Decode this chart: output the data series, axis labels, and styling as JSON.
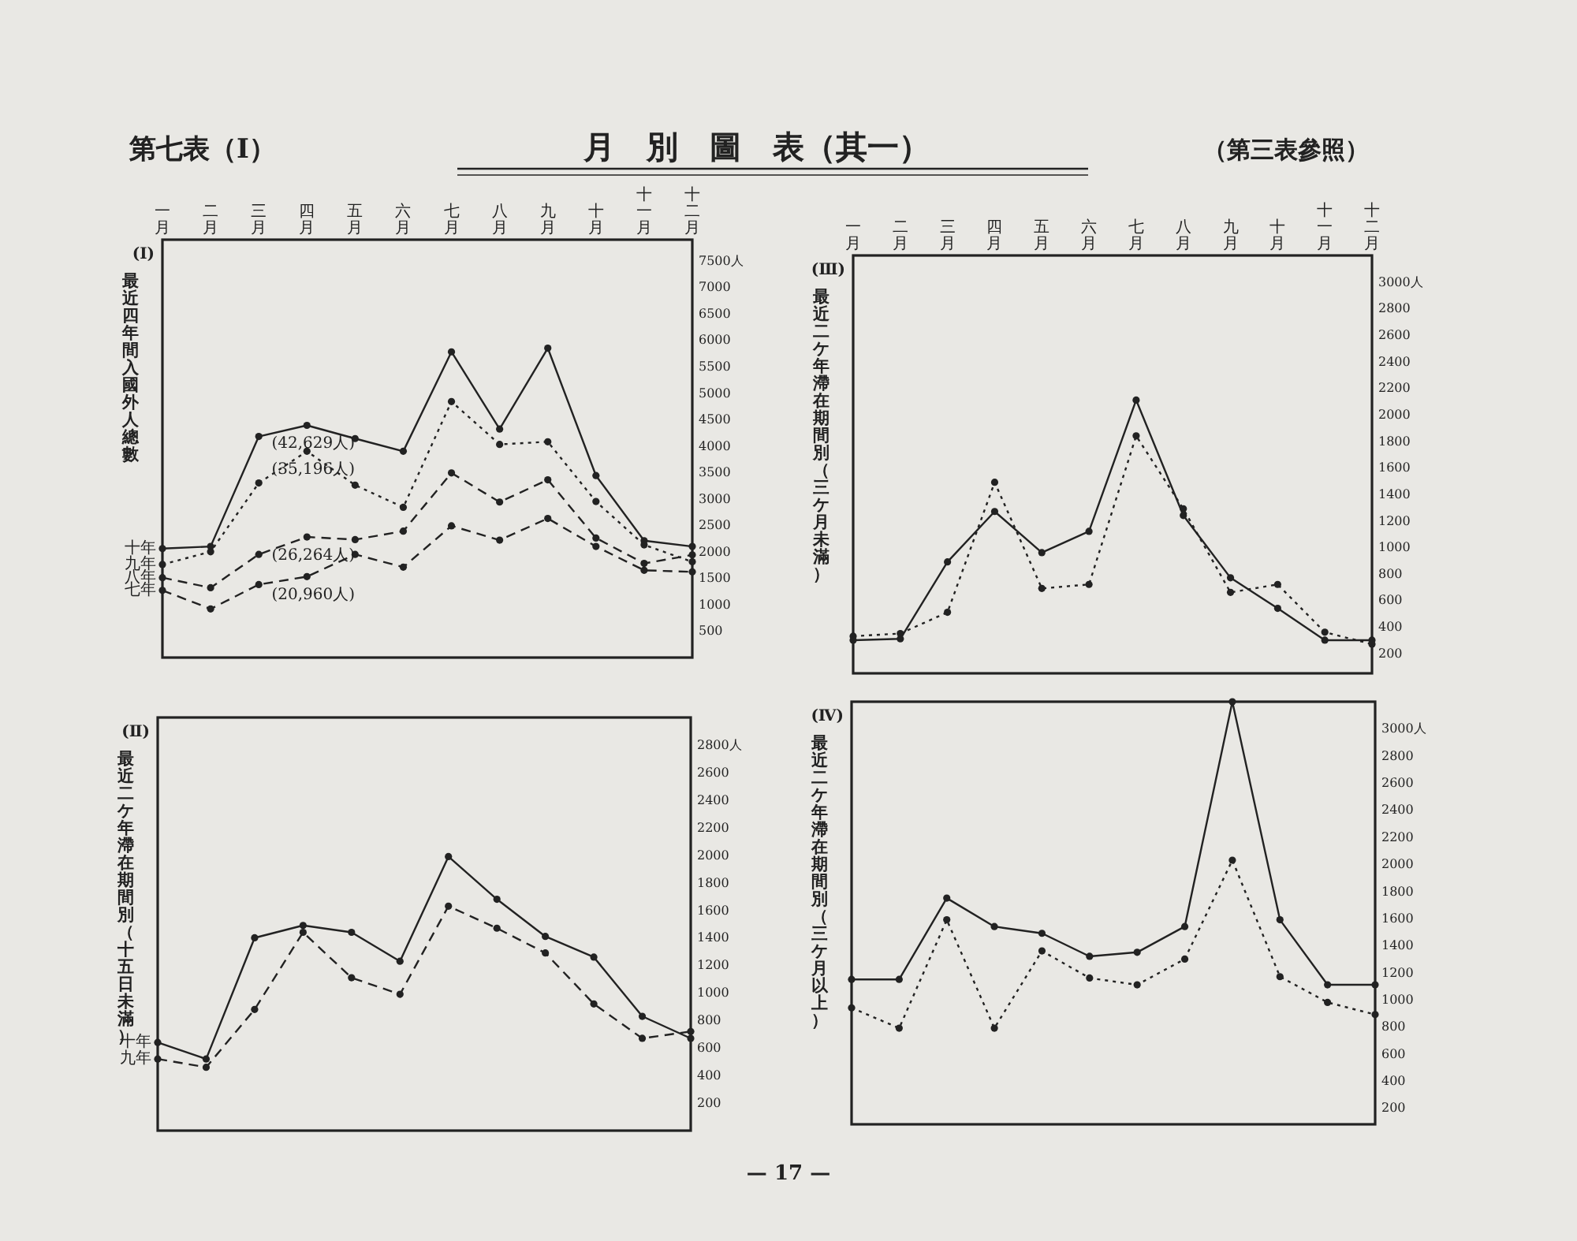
{
  "chart_data": [
    {
      "type": "line",
      "title": "(Ⅰ)",
      "ylabel": "最近四年間入國外人總數",
      "categories": [
        "一月",
        "二月",
        "三月",
        "四月",
        "五月",
        "六月",
        "七月",
        "八月",
        "九月",
        "十月",
        "十一月",
        "十二月"
      ],
      "marker": "circle",
      "series": [
        {
          "name": "十年",
          "color": "#222222",
          "line_style": "solid",
          "values": [
            2060,
            2100,
            4180,
            4390,
            4140,
            3900,
            5780,
            4320,
            5850,
            3440,
            2210,
            2100
          ]
        },
        {
          "name": "九年",
          "color": "#222222",
          "line_style": "dotted",
          "values": [
            1760,
            2000,
            3300,
            3900,
            3260,
            2840,
            4840,
            4030,
            4080,
            2950,
            2130,
            1810
          ]
        },
        {
          "name": "八年",
          "color": "#222222",
          "line_style": "dashed",
          "values": [
            1510,
            1320,
            1950,
            2280,
            2230,
            2390,
            3490,
            2940,
            3360,
            2260,
            1780,
            1940
          ]
        },
        {
          "name": "七年",
          "color": "#222222",
          "line_style": "dashed",
          "values": [
            1270,
            920,
            1380,
            1530,
            1950,
            1710,
            2490,
            2220,
            2630,
            2100,
            1650,
            1620
          ]
        }
      ],
      "ylim": [
        0,
        7900
      ],
      "yticks": [
        500,
        1000,
        1500,
        2000,
        2500,
        3000,
        3500,
        4000,
        4500,
        5000,
        5500,
        6000,
        6500,
        7000,
        {
          "value": 7500,
          "label": "7500人"
        }
      ],
      "annotations": [
        "第七表（I）",
        "月　別　圖　表（其一）",
        "（第三表參照）",
        "— 17 —",
        {
          "text": "(42,629人)",
          "x": "四月",
          "y": 4390
        },
        {
          "text": "(35,196人)",
          "x": "四月",
          "y": 3900
        },
        {
          "text": "(26,264人)",
          "x": "四月",
          "y": 2280
        },
        {
          "text": "(20,960人)",
          "x": "四月",
          "y": 1530
        }
      ]
    },
    {
      "type": "line",
      "title": "(Ⅲ)",
      "ylabel": "最近二ケ年滯在期間別（三ケ月未滿）",
      "categories": [
        "一月",
        "二月",
        "三月",
        "四月",
        "五月",
        "六月",
        "七月",
        "八月",
        "九月",
        "十月",
        "十一月",
        "十二月"
      ],
      "marker": "circle",
      "series": [
        {
          "color": "#222222",
          "line_style": "solid",
          "values": [
            300,
            310,
            890,
            1270,
            960,
            1120,
            2110,
            1240,
            770,
            540,
            300,
            300
          ]
        },
        {
          "color": "#222222",
          "line_style": "dotted",
          "values": [
            330,
            350,
            510,
            1490,
            690,
            720,
            1840,
            1290,
            660,
            720,
            360,
            270
          ]
        }
      ],
      "ylim": [
        50,
        3200
      ],
      "yticks": [
        200,
        400,
        600,
        800,
        1000,
        1200,
        1400,
        1600,
        1800,
        2000,
        2200,
        2400,
        2600,
        2800,
        {
          "value": 3000,
          "label": "3000人"
        }
      ]
    },
    {
      "type": "line",
      "title": "(Ⅱ)",
      "ylabel": "最近二ケ年滯在期間別（十五日未滿）",
      "categories": [
        null,
        null,
        null,
        null,
        null,
        null,
        null,
        null,
        null,
        null,
        null,
        null
      ],
      "marker": "circle",
      "tick_labels": "y",
      "series": [
        {
          "name": "十年",
          "color": "#222222",
          "line_style": "solid",
          "values": [
            640,
            520,
            1400,
            1490,
            1440,
            1230,
            1990,
            1680,
            1410,
            1260,
            830,
            670
          ]
        },
        {
          "name": "九年",
          "color": "#222222",
          "line_style": "dashed",
          "values": [
            520,
            460,
            880,
            1440,
            1110,
            990,
            1630,
            1470,
            1290,
            920,
            670,
            720
          ]
        }
      ],
      "ylim": [
        0,
        3000
      ],
      "yticks": [
        200,
        400,
        600,
        800,
        1000,
        1200,
        1400,
        1600,
        1800,
        2000,
        2200,
        2400,
        2600,
        {
          "value": 2800,
          "label": "2800人"
        }
      ]
    },
    {
      "type": "line",
      "title": "(Ⅳ)",
      "ylabel": "最近二ケ年滯在期間別（三ケ月以上）",
      "categories": [
        null,
        null,
        null,
        null,
        null,
        null,
        null,
        null,
        null,
        null,
        null,
        null
      ],
      "marker": "circle",
      "tick_labels": "y",
      "series": [
        {
          "color": "#222222",
          "line_style": "solid",
          "values": [
            1150,
            1150,
            1750,
            1540,
            1490,
            1320,
            1350,
            1540,
            3200,
            1590,
            1110,
            1110
          ]
        },
        {
          "color": "#222222",
          "line_style": "dotted",
          "values": [
            940,
            790,
            1590,
            790,
            1360,
            1160,
            1110,
            1300,
            2030,
            1170,
            980,
            890
          ]
        }
      ],
      "ylim": [
        80,
        3200
      ],
      "yticks": [
        200,
        400,
        600,
        800,
        1000,
        1200,
        1400,
        1600,
        1800,
        2000,
        2200,
        2400,
        2600,
        2800,
        {
          "value": 3000,
          "label": "3000人"
        }
      ]
    }
  ]
}
